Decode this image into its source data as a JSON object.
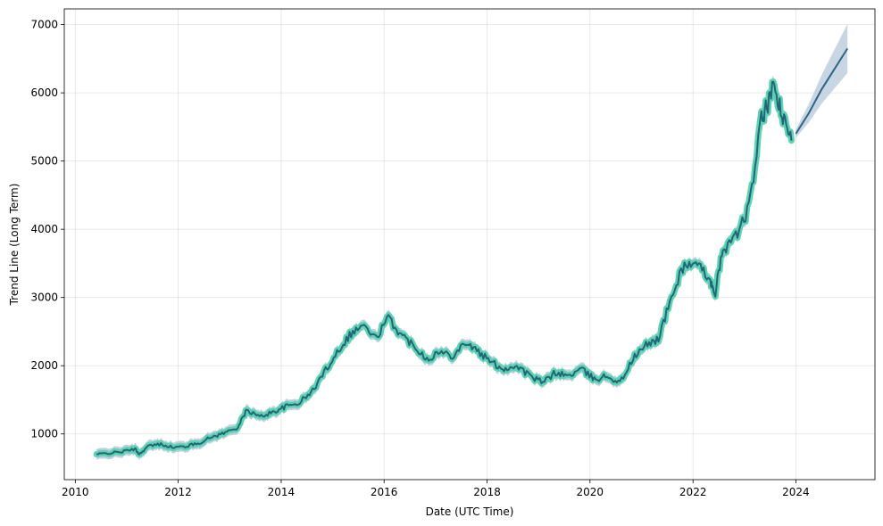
{
  "chart_data": {
    "type": "line",
    "title": "",
    "xlabel": "Date (UTC Time)",
    "ylabel": "Trend Line (Long Term)",
    "xlim": [
      "2009-10-15",
      "2025-07-15"
    ],
    "ylim": [
      330,
      7230
    ],
    "x_ticks": [
      "2010",
      "2012",
      "2014",
      "2016",
      "2018",
      "2020",
      "2022",
      "2024"
    ],
    "y_ticks": [
      1000,
      2000,
      3000,
      4000,
      5000,
      6000,
      7000
    ],
    "grid": true,
    "colors": {
      "actual_band": "#5fd3b1",
      "trend_line": "#22667a",
      "forecast_line": "#2e6584",
      "confidence_band": "#b0c4d8"
    },
    "series": [
      {
        "role": "historical_trend",
        "x": [
          "2010-06-01",
          "2010-09-01",
          "2010-12-01",
          "2011-03-01",
          "2011-04-01",
          "2011-06-01",
          "2011-09-01",
          "2011-12-01",
          "2012-03-01",
          "2012-06-01",
          "2012-09-01",
          "2012-12-01",
          "2013-03-01",
          "2013-05-01",
          "2013-08-01",
          "2013-11-01",
          "2014-02-01",
          "2014-05-01",
          "2014-08-01",
          "2014-11-01",
          "2015-02-01",
          "2015-05-01",
          "2015-08-01",
          "2015-11-01",
          "2016-02-01",
          "2016-05-01",
          "2016-08-01",
          "2016-11-01",
          "2017-02-01",
          "2017-05-01",
          "2017-08-01",
          "2017-11-01",
          "2018-02-01",
          "2018-05-01",
          "2018-08-01",
          "2018-11-01",
          "2019-02-01",
          "2019-05-01",
          "2019-08-01",
          "2019-11-01",
          "2020-02-01",
          "2020-05-01",
          "2020-08-01",
          "2020-11-01",
          "2021-02-01",
          "2021-05-01",
          "2021-08-01",
          "2021-11-01",
          "2022-02-01",
          "2022-05-01",
          "2022-06-01",
          "2022-08-01",
          "2022-11-01",
          "2023-02-01",
          "2023-05-01",
          "2023-06-01",
          "2023-08-01",
          "2023-10-01",
          "2023-12-01"
        ],
        "y": [
          700,
          720,
          740,
          780,
          700,
          820,
          850,
          800,
          820,
          870,
          960,
          1020,
          1100,
          1350,
          1250,
          1320,
          1400,
          1450,
          1600,
          1900,
          2200,
          2450,
          2600,
          2400,
          2700,
          2450,
          2300,
          2100,
          2200,
          2150,
          2350,
          2200,
          2050,
          1950,
          2000,
          1850,
          1750,
          1900,
          1850,
          1950,
          1800,
          1850,
          1750,
          2100,
          2300,
          2400,
          3000,
          3500,
          3450,
          3300,
          3000,
          3700,
          3900,
          4300,
          5600,
          5750,
          6100,
          5600,
          5300
        ]
      },
      {
        "role": "forecast",
        "x": [
          "2024-01-01",
          "2024-04-01",
          "2024-07-01",
          "2024-10-01",
          "2025-01-01"
        ],
        "y": [
          5400,
          5700,
          6050,
          6350,
          6650
        ]
      }
    ]
  }
}
